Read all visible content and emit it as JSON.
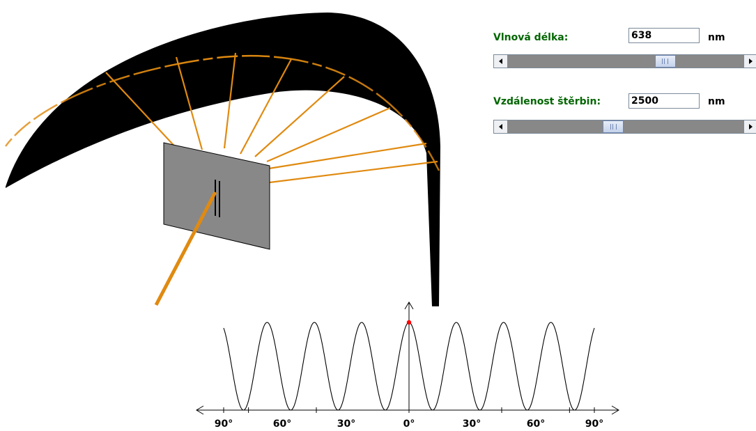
{
  "controls": {
    "wavelength": {
      "label": "Vlnová délka:",
      "value": "638",
      "unit": "nm",
      "slider_fraction": 0.68
    },
    "slit_distance": {
      "label": "Vzdálenost štěrbin:",
      "value": "2500",
      "unit": "nm",
      "slider_fraction": 0.44
    }
  },
  "icons": {
    "scroll_left": "arrow-left-icon",
    "scroll_right": "arrow-right-icon",
    "marker": "down-arrow-icon"
  },
  "plot": {
    "tick_labels": [
      "90°",
      "60°",
      "30°",
      "0°",
      "30°",
      "60°",
      "90°"
    ]
  },
  "colors": {
    "beam": "#e08a10",
    "screen": "#000000",
    "slit_plate": "#888888",
    "label_green": "#006600",
    "marker": "#ff0000"
  }
}
